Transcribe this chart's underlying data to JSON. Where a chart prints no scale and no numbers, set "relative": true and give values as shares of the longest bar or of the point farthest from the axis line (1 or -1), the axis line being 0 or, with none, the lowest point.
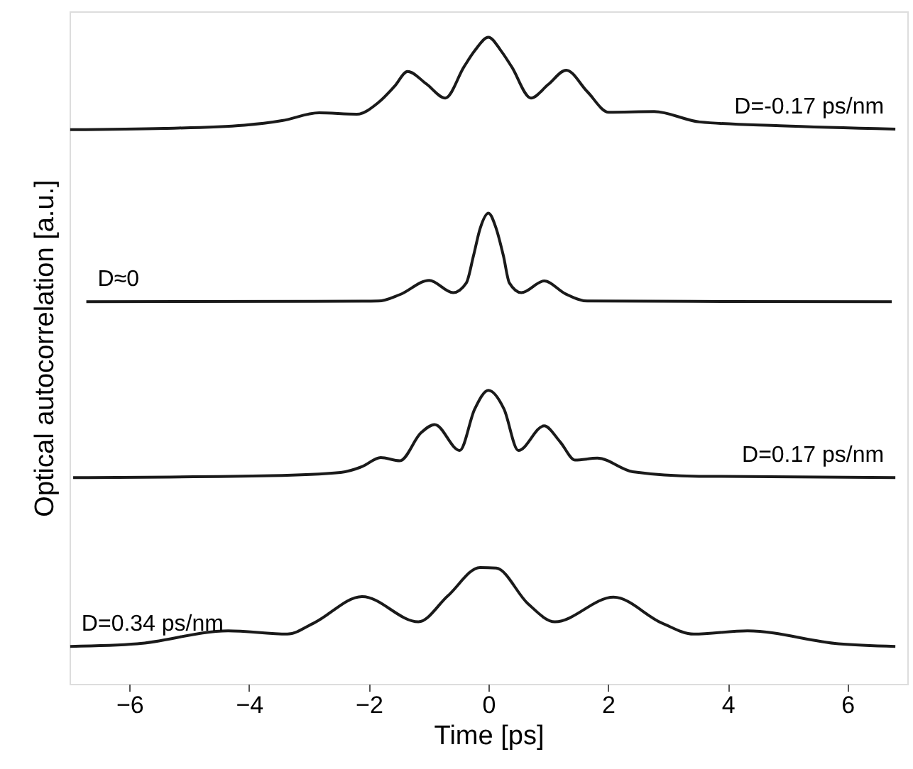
{
  "chart_data": {
    "type": "line",
    "relative": true,
    "xlabel": "Time [ps]",
    "ylabel": "Optical autocorrelation [a.u.]",
    "xlim": [
      -7,
      7
    ],
    "xticks": [
      {
        "value": -6,
        "label": "−6"
      },
      {
        "value": -4,
        "label": "−4"
      },
      {
        "value": -2,
        "label": "−2"
      },
      0,
      2,
      4,
      6
    ],
    "tick_labels": "x",
    "grid": false,
    "marker": "none",
    "line_style": "solid",
    "series": [
      {
        "name": "D=-0.17 ps/nm",
        "color": "#1a1a1a",
        "x": [
          -6.99,
          -5.42,
          -4.08,
          -3.45,
          -2.83,
          -2.2,
          -1.84,
          -1.57,
          -1.35,
          -1.04,
          -0.72,
          -0.41,
          -0.23,
          0,
          0.21,
          0.39,
          0.71,
          1.0,
          1.3,
          1.65,
          2.01,
          2.77,
          3.53,
          4.87,
          6.8
        ],
        "values": [
          0.857,
          0.859,
          0.864,
          0.871,
          0.883,
          0.881,
          0.899,
          0.924,
          0.947,
          0.928,
          0.906,
          0.954,
          0.979,
          1.0,
          0.979,
          0.954,
          0.906,
          0.927,
          0.949,
          0.916,
          0.884,
          0.885,
          0.869,
          0.863,
          0.858
        ]
      },
      {
        "name": "D≈0",
        "color": "#1a1a1a",
        "x": [
          -6.72,
          -1.84,
          -1.48,
          -0.99,
          -0.59,
          -0.37,
          -0.25,
          -0.14,
          0,
          0.13,
          0.25,
          0.35,
          0.55,
          0.93,
          1.29,
          1.65,
          6.74
        ],
        "values": [
          0.591,
          0.592,
          0.602,
          0.624,
          0.605,
          0.62,
          0.662,
          0.704,
          0.728,
          0.704,
          0.662,
          0.62,
          0.605,
          0.623,
          0.603,
          0.592,
          0.591
        ]
      },
      {
        "name": "D=0.17 ps/nm",
        "color": "#1a1a1a",
        "x": [
          -6.94,
          -3.63,
          -2.47,
          -2.11,
          -1.8,
          -1.48,
          -1.13,
          -0.9,
          -0.48,
          -0.23,
          0,
          0.26,
          0.5,
          0.93,
          1.2,
          1.45,
          1.82,
          2.41,
          3.52,
          6.8
        ],
        "values": [
          0.319,
          0.322,
          0.327,
          0.336,
          0.35,
          0.345,
          0.388,
          0.401,
          0.361,
          0.425,
          0.454,
          0.425,
          0.361,
          0.399,
          0.374,
          0.346,
          0.349,
          0.328,
          0.321,
          0.319
        ]
      },
      {
        "name": "D=0.34 ps/nm",
        "color": "#1a1a1a",
        "x": [
          -6.99,
          -5.87,
          -4.35,
          -3.36,
          -2.92,
          -2.11,
          -1.17,
          -0.68,
          -0.14,
          0.13,
          0.66,
          1.11,
          2.09,
          2.9,
          3.43,
          4.33,
          5.85,
          6.8
        ],
        "values": [
          0.058,
          0.062,
          0.082,
          0.077,
          0.094,
          0.135,
          0.096,
          0.136,
          0.18,
          0.179,
          0.124,
          0.096,
          0.134,
          0.094,
          0.077,
          0.082,
          0.062,
          0.058
        ]
      }
    ]
  }
}
